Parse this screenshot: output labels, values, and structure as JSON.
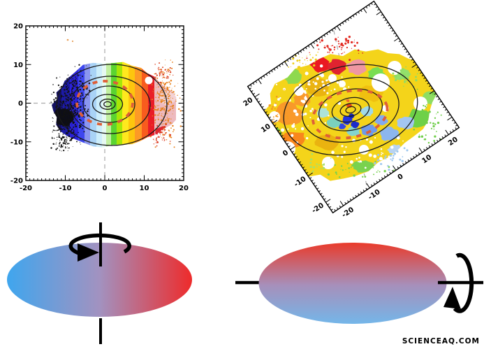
{
  "figure": {
    "type": "scientific-figure",
    "subject": "Counter-rotating stellar disks: two integral-field stellar velocity maps with isophote contours, plus schematic disk diagrams with spin-axis arrows"
  },
  "chart_data": [
    {
      "type": "heatmap",
      "name": "stellar velocity map (face-on view)",
      "xlim": [
        -20,
        20
      ],
      "ylim": [
        -20,
        20
      ],
      "x_tick_labels": [
        "-20",
        "-10",
        "0",
        "10",
        "20"
      ],
      "y_tick_labels": [
        "20",
        "10",
        "0",
        "-10",
        "-20"
      ],
      "frame_rotation_deg": 0,
      "grid": false,
      "velocity_color_sequence": [
        "#131063",
        "#1c1aa6",
        "#2a22d9",
        "#3e47ef",
        "#8a96ef",
        "#a9d3f6",
        "#cdeefb",
        "#e6f9f2",
        "#c2f0a0",
        "#5ad431",
        "#a8e607",
        "#ffe81e",
        "#fdc60e",
        "#fd9a26",
        "#f85c1e",
        "#e91d27",
        "#edbabf"
      ],
      "overlays": [
        "black isophote contour ellipses",
        "red dashed core ellipse",
        "gray dashed crosshair at 0,0",
        "black scatter cloud on approaching side",
        "orange scatter cloud on receding side",
        "white masked circle"
      ]
    },
    {
      "type": "heatmap",
      "name": "stellar velocity map (inclined rotated view)",
      "xlim": [
        -24,
        24
      ],
      "ylim": [
        -24,
        24
      ],
      "x_tick_labels": [
        "-20",
        "-10",
        "0",
        "10",
        "20"
      ],
      "y_tick_labels": [
        "20",
        "10",
        "0",
        "-10",
        "-20"
      ],
      "frame_rotation_deg": -34,
      "grid": false,
      "dominant_colors": [
        "#f4d41a",
        "#f9992a",
        "#8ed94e",
        "#ea1822",
        "#ef97a2",
        "#7bd0bd",
        "#6f9ae9",
        "#2335dd",
        "#8cb6ef",
        "#ffffff"
      ],
      "overlays": [
        "black isophote contour ellipses",
        "red dashed core ellipse",
        "gray dashed crosshair",
        "colored speckle halo",
        "white masked circles"
      ]
    }
  ],
  "diagrams": {
    "face_on_disk": {
      "gradient_left": "#3fa6ee",
      "gradient_mid": "#a292c0",
      "gradient_right": "#ee2b2b",
      "spin_axis": "vertical",
      "arrow": "circular rotation arrow looping around top of vertical axis"
    },
    "edge_on_disk": {
      "gradient_top": "#ea3a2a",
      "gradient_mid": "#a78fba",
      "gradient_bottom": "#74b6e9",
      "spin_axis": "horizontal",
      "arrow": "circular rotation arrow looping around right end of horizontal axis"
    }
  },
  "overlay_colors": {
    "core_ellipse_dash": "#df5f38",
    "contour": "#1a1a1a",
    "crosshair": "#ababab"
  },
  "watermark": {
    "text": "SCIENCEAQ.COM",
    "color": "#f2b4b4"
  }
}
